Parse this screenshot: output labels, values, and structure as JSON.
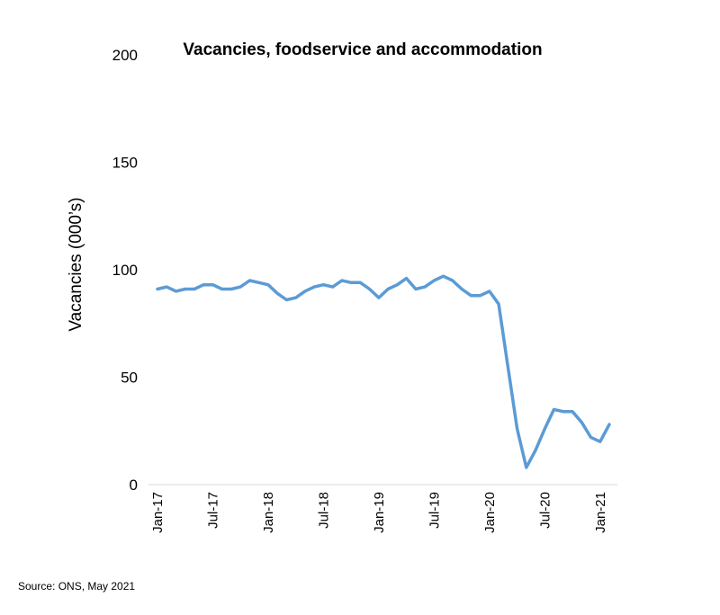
{
  "chart_data": {
    "type": "line",
    "title": "Vacancies, foodservice and accommodation",
    "xlabel": "",
    "ylabel": "Vacancies (000’s)",
    "ylim": [
      0,
      200
    ],
    "yticks": [
      0,
      50,
      100,
      150,
      200
    ],
    "x": [
      "Jan-17",
      "Feb-17",
      "Mar-17",
      "Apr-17",
      "May-17",
      "Jun-17",
      "Jul-17",
      "Aug-17",
      "Sep-17",
      "Oct-17",
      "Nov-17",
      "Dec-17",
      "Jan-18",
      "Feb-18",
      "Mar-18",
      "Apr-18",
      "May-18",
      "Jun-18",
      "Jul-18",
      "Aug-18",
      "Sep-18",
      "Oct-18",
      "Nov-18",
      "Dec-18",
      "Jan-19",
      "Feb-19",
      "Mar-19",
      "Apr-19",
      "May-19",
      "Jun-19",
      "Jul-19",
      "Aug-19",
      "Sep-19",
      "Oct-19",
      "Nov-19",
      "Dec-19",
      "Jan-20",
      "Feb-20",
      "Mar-20",
      "Apr-20",
      "May-20",
      "Jun-20",
      "Jul-20",
      "Aug-20",
      "Sep-20",
      "Oct-20",
      "Nov-20",
      "Dec-20",
      "Jan-21",
      "Feb-21"
    ],
    "tick_labels": [
      "Jan-17",
      "Jul-17",
      "Jan-18",
      "Jul-18",
      "Jan-19",
      "Jul-19",
      "Jan-20",
      "Jul-20",
      "Jan-21"
    ],
    "tick_indices": [
      0,
      6,
      12,
      18,
      24,
      30,
      36,
      42,
      48
    ],
    "series": [
      {
        "name": "Vacancies",
        "color": "#5B9BD5",
        "values": [
          91,
          92,
          90,
          91,
          91,
          93,
          93,
          91,
          91,
          92,
          95,
          94,
          93,
          89,
          86,
          87,
          90,
          92,
          93,
          92,
          95,
          94,
          94,
          91,
          87,
          91,
          93,
          96,
          91,
          92,
          95,
          97,
          95,
          91,
          88,
          88,
          90,
          84,
          55,
          26,
          8,
          16,
          26,
          35,
          34,
          34,
          29,
          22,
          20,
          28
        ]
      }
    ]
  },
  "source": "Source: ONS, May 2021"
}
